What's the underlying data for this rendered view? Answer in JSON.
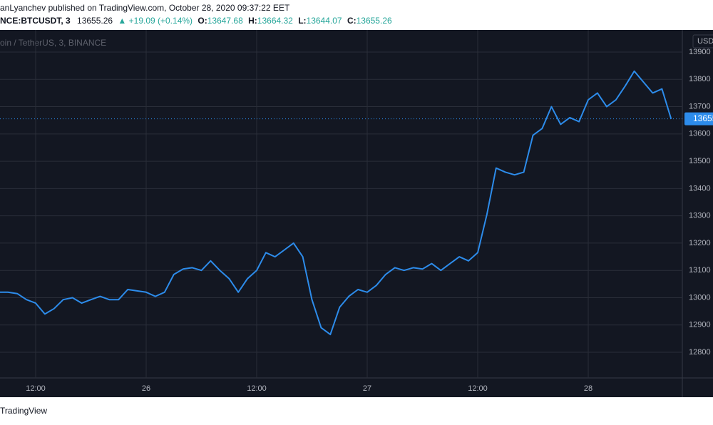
{
  "header": {
    "author_line": "anLyanchev published on TradingView.com, October 28, 2020 09:37:22 EET",
    "symbol": "NCE:BTCUSDT, 3",
    "price": "13655.26",
    "change": "▲ +19.09 (+0.14%)",
    "ohlc": [
      {
        "label": "O:",
        "value": "13647.68"
      },
      {
        "label": "H:",
        "value": "13664.32"
      },
      {
        "label": "L:",
        "value": "13644.07"
      },
      {
        "label": "C:",
        "value": "13655.26"
      }
    ]
  },
  "footer": "TradingView",
  "chart_data": {
    "type": "line",
    "title": "oin / TetherUS, 3, BINANCE",
    "y_axis_label": "USD",
    "categories": [
      null,
      null,
      null,
      null,
      "12:00",
      null,
      null,
      null,
      null,
      null,
      null,
      null,
      null,
      null,
      null,
      null,
      "26",
      null,
      null,
      null,
      null,
      null,
      null,
      null,
      null,
      null,
      null,
      null,
      "12:00",
      null,
      null,
      null,
      null,
      null,
      null,
      null,
      null,
      null,
      null,
      null,
      "27",
      null,
      null,
      null,
      null,
      null,
      null,
      null,
      null,
      null,
      null,
      null,
      "12:00",
      null,
      null,
      null,
      null,
      null,
      null,
      null,
      null,
      null,
      null,
      null,
      "28",
      null,
      null,
      null,
      null,
      null,
      null,
      null,
      null,
      null
    ],
    "series": [
      {
        "name": "BTCUSDT",
        "color": "#2d8ceb",
        "values": [
          13020,
          13020,
          13015,
          12993,
          12980,
          12940,
          12960,
          12993,
          13000,
          12980,
          12993,
          13005,
          12993,
          12993,
          13030,
          13025,
          13020,
          13005,
          13020,
          13085,
          13105,
          13110,
          13100,
          13135,
          13100,
          13070,
          13020,
          13070,
          13100,
          13165,
          13150,
          13175,
          13200,
          13150,
          12993,
          12890,
          12865,
          12965,
          13005,
          13030,
          13020,
          13045,
          13085,
          13110,
          13100,
          13110,
          13105,
          13125,
          13100,
          13125,
          13150,
          13135,
          13165,
          13305,
          13475,
          13460,
          13450,
          13460,
          13595,
          13620,
          13700,
          13635,
          13660,
          13645,
          13725,
          13750,
          13700,
          13725,
          13775,
          13830,
          13790,
          13750,
          13765,
          13655
        ]
      }
    ],
    "last_price": 13655.26,
    "ylim": [
      12706,
      13981
    ],
    "yticks": [
      12800,
      12900,
      13000,
      13100,
      13200,
      13300,
      13400,
      13500,
      13600,
      13700,
      13800,
      13900
    ],
    "grid": true
  }
}
